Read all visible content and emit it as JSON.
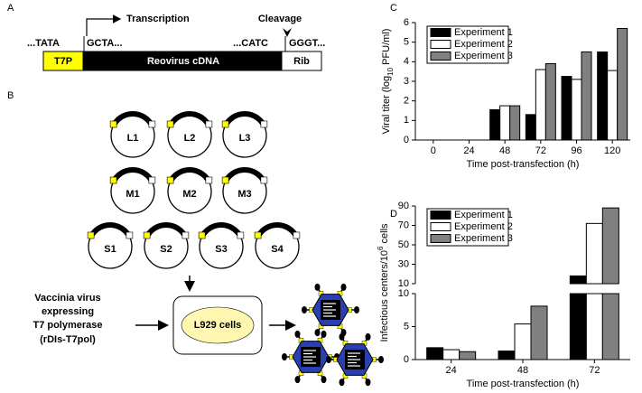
{
  "panel_labels": [
    "A",
    "B",
    "C",
    "D"
  ],
  "construct": {
    "promoter_seq": "...TATA",
    "start_seq": "GCTA...",
    "end_seq": "...CATC",
    "ribozyme_seq": "GGGT...",
    "promoter": "T7P",
    "cdna": "Reovirus cDNA",
    "ribozyme": "Rib",
    "transcription": "Transcription",
    "cleavage": "Cleavage"
  },
  "plasmids": [
    "L1",
    "L2",
    "L3",
    "M1",
    "M2",
    "M3",
    "S1",
    "S2",
    "S3",
    "S4"
  ],
  "vaccinia_lines": [
    "Vaccinia virus",
    "expressing",
    "T7 polymerase",
    "(rDIs-T7pol)"
  ],
  "cells": "L929 cells",
  "chart_data": [
    {
      "type": "bar",
      "x_label": "Time post-transfection (h)",
      "y_label_parts": [
        "Viral titer (log",
        "10",
        " PFU/ml)"
      ],
      "categories": [
        "0",
        "24",
        "48",
        "72",
        "96",
        "120"
      ],
      "series": [
        {
          "name": "Experiment 1",
          "color": "#000000",
          "values": [
            null,
            null,
            1.55,
            1.3,
            3.25,
            4.5
          ]
        },
        {
          "name": "Experiment 2",
          "color": "#ffffff",
          "values": [
            null,
            null,
            1.75,
            3.6,
            3.1,
            3.55
          ]
        },
        {
          "name": "Experiment 3",
          "color": "#808080",
          "values": [
            null,
            null,
            1.75,
            3.9,
            4.5,
            5.7
          ]
        }
      ],
      "ylim": [
        0,
        6
      ],
      "yticks": [
        0,
        1,
        2,
        3,
        4,
        5,
        6
      ],
      "legend": "top-left"
    },
    {
      "type": "broken-bar",
      "x_label": "Time post-transfection (h)",
      "y_label_parts": [
        "Infectious centers/10",
        "6",
        " cells"
      ],
      "categories": [
        "24",
        "48",
        "72"
      ],
      "series": [
        {
          "name": "Experiment 1",
          "color": "#000000",
          "values": [
            1.8,
            1.3,
            18
          ]
        },
        {
          "name": "Experiment 2",
          "color": "#ffffff",
          "values": [
            1.5,
            5.4,
            72
          ]
        },
        {
          "name": "Experiment 3",
          "color": "#808080",
          "values": [
            1.2,
            8.1,
            88
          ]
        }
      ],
      "ylim_lower": [
        0,
        10
      ],
      "yticks_lower": [
        0,
        5,
        10
      ],
      "ylim_upper": [
        10,
        90
      ],
      "yticks_upper": [
        10,
        30,
        50,
        70,
        90
      ],
      "legend": "top-left"
    }
  ]
}
